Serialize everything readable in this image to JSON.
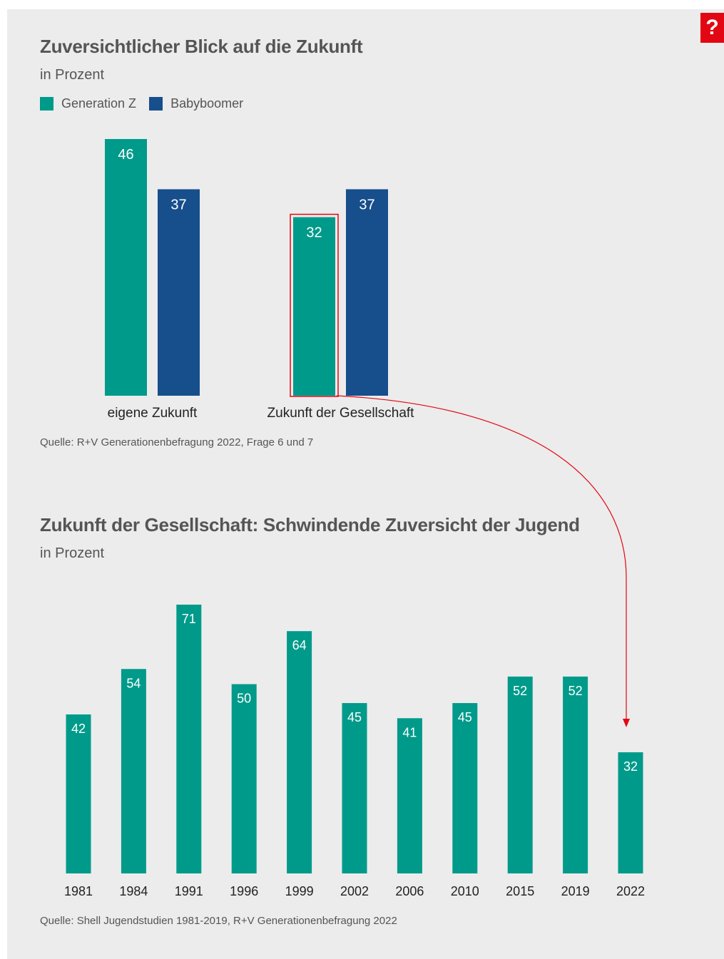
{
  "help_icon_label": "?",
  "chart1": {
    "title": "Zuversichtlicher Blick auf die Zukunft",
    "subtitle": "in Prozent",
    "legend": [
      {
        "name": "Generation Z",
        "color": "#009a8a"
      },
      {
        "name": "Babyboomer",
        "color": "#174e8c"
      }
    ],
    "source": "Quelle: R+V Generationenbefragung 2022, Frage 6 und 7"
  },
  "chart2": {
    "title": "Zukunft der Gesellschaft: Schwindende Zuversicht der Jugend",
    "subtitle": "in Prozent",
    "source": "Quelle: Shell Jugendstudien 1981-2019, R+V Generationenbefragung 2022"
  },
  "colors": {
    "teal": "#009a8a",
    "blue": "#174e8c",
    "highlight": "#e30613"
  },
  "chart_data": [
    {
      "type": "bar",
      "categories": [
        "eigene Zukunft",
        "Zukunft der Gesellschaft"
      ],
      "series": [
        {
          "name": "Generation Z",
          "values": [
            46,
            32
          ]
        },
        {
          "name": "Babyboomer",
          "values": [
            37,
            37
          ]
        }
      ],
      "highlight": {
        "series": "Generation Z",
        "category": "Zukunft der Gesellschaft"
      }
    },
    {
      "type": "bar",
      "categories": [
        "1981",
        "1984",
        "1991",
        "1996",
        "1999",
        "2002",
        "2006",
        "2010",
        "2015",
        "2019",
        "2022"
      ],
      "values": [
        42,
        54,
        71,
        50,
        64,
        45,
        41,
        45,
        52,
        52,
        32
      ]
    }
  ]
}
